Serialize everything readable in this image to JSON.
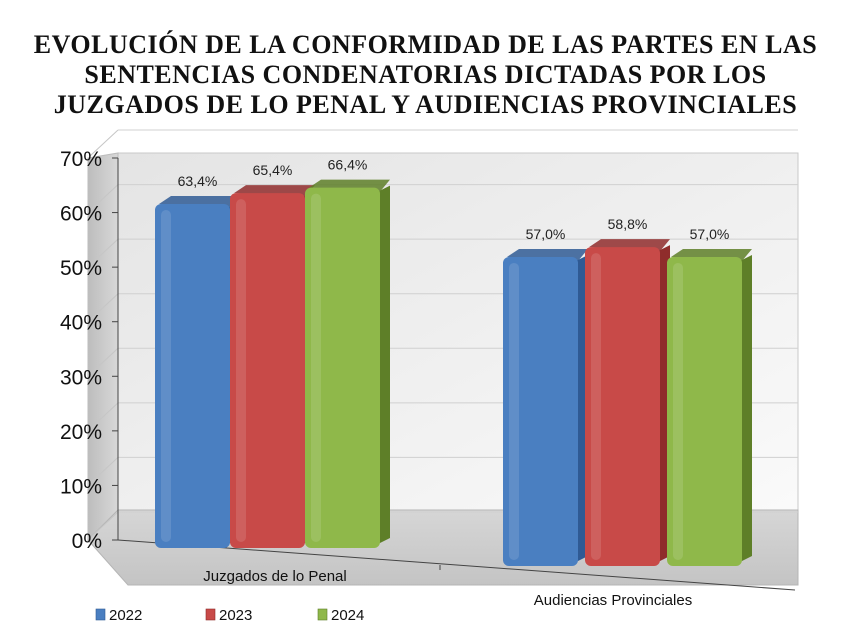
{
  "chart_data": {
    "type": "bar",
    "title_lines": [
      "EVOLUCIÓN DE LA CONFORMIDAD DE LAS PARTES EN LAS",
      "SENTENCIAS CONDENATORIAS DICTADAS POR LOS",
      "JUZGADOS DE LO PENAL Y AUDIENCIAS PROVINCIALES"
    ],
    "categories": [
      "Juzgados de lo Penal",
      "Audiencias Provinciales"
    ],
    "series": [
      {
        "name": "2022",
        "values": [
          63.4,
          57.0
        ],
        "labels": [
          "63,4%",
          "57,0%"
        ],
        "color": "#4a7fc1",
        "dark": "#2f5a94"
      },
      {
        "name": "2023",
        "values": [
          65.4,
          58.8
        ],
        "labels": [
          "65,4%",
          "58,8%"
        ],
        "color": "#c84a48",
        "dark": "#8f2c2b"
      },
      {
        "name": "2024",
        "values": [
          66.4,
          57.0
        ],
        "labels": [
          "66,4%",
          "57,0%"
        ],
        "color": "#8fb84a",
        "dark": "#5e7f28"
      }
    ],
    "y_ticks": [
      0,
      10,
      20,
      30,
      40,
      50,
      60,
      70
    ],
    "y_tick_labels": [
      "0%",
      "10%",
      "20%",
      "30%",
      "40%",
      "50%",
      "60%",
      "70%"
    ],
    "ylim": [
      0,
      70
    ],
    "legend_position": "bottom-left"
  }
}
